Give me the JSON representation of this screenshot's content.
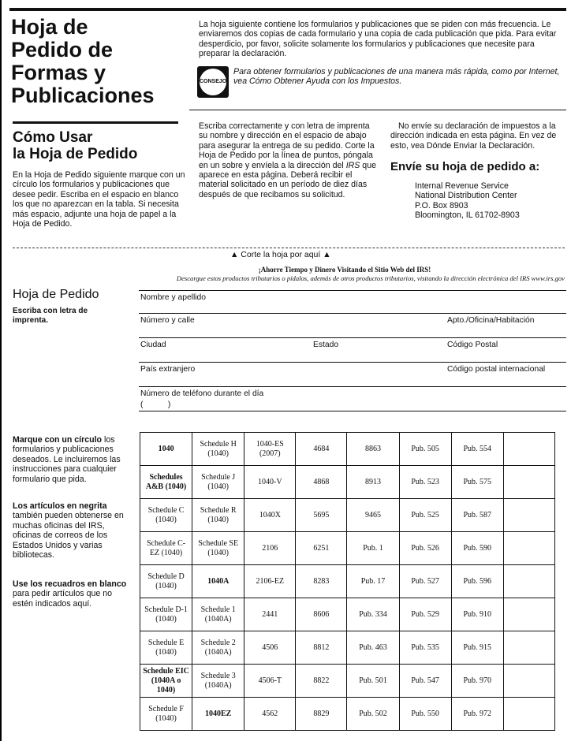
{
  "title": [
    "Hoja de",
    "Pedido de",
    "Formas y",
    "Publicaciones"
  ],
  "intro": "La hoja siguiente contiene los formularios y publicaciones que se piden con más frecuencia. Le enviaremos dos copias de cada formulario y una copia de cada publicación que pida. Para evitar desperdicio, por favor, solicite solamente los formularios y publicaciones que necesite para preparar la declaración.",
  "tip": {
    "badge": "CONSEJO",
    "text": "Para obtener formularios y publicaciones de una manera más rápida, como por Internet, vea Cómo Obtener Ayuda con los Impuestos."
  },
  "how": {
    "title1": "Cómo Usar",
    "title2": "la Hoja de Pedido",
    "text": "En la Hoja de Pedido siguiente marque con un círculo los formularios y publicaciones que desee pedir. Escriba en el espacio en blanco los que no aparezcan en la tabla. Si necesita más espacio, adjunte una hoja de papel a la Hoja de Pedido."
  },
  "middle": {
    "p1": "Escriba correctamente y con letra de imprenta su nombre y dirección en el espacio de abajo para asegurar la entrega de su pedido. Corte la Hoja de Pedido por la línea de puntos, póngala en un sobre y envíela a la dirección del ",
    "irs": "IRS",
    "p2": " que aparece en esta página. Deberá recibir el material solicitado en un período de diez días después de que recibamos su solicitud."
  },
  "right": {
    "text": "No envíe su declaración de impuestos a la dirección indicada en esta página. En vez de esto, vea Dónde Enviar la Declaración.",
    "heading": "Envíe su hoja de pedido a:",
    "address": [
      "Internal Revenue Service",
      "National Distribution Center",
      "P.O. Box 8903",
      "Bloomington, IL 61702-8903"
    ]
  },
  "cut": "▲ Corte la hoja por aquí ▲",
  "web": {
    "headline": "¡Ahorre Tiempo y Dinero Visitando el Sitio Web del IRS!",
    "text": "Descargue estos productos tributarios o pídalos, además de otros productos tributarios, visitando la dirección electrónica del IRS www.irs.gov"
  },
  "order": {
    "title": "Hoja de Pedido",
    "subtitle": "Escriba con letra de imprenta.",
    "fields": {
      "name": "Nombre y apellido",
      "street": "Número y calle",
      "apt": "Apto./Oficina/Habitación",
      "city": "Ciudad",
      "state": "Estado",
      "zip": "Código Postal",
      "country": "País extranjero",
      "intl_zip": "Código postal internacional",
      "phone": "Número de teléfono durante el día",
      "phone_paren": "(           )"
    }
  },
  "instructions": [
    {
      "bold": "Marque con un círculo",
      "rest": " los formularios y publicaciones deseados. Le incluiremos las instrucciones para cualquier formulario que pida."
    },
    {
      "bold": "Los artículos en negrita",
      "rest": " también pueden obtenerse en muchas oficinas del IRS, oficinas de correos de los Estados Unidos y varias bibliotecas."
    },
    {
      "bold": "Use los recuadros en blanco",
      "rest": " para pedir artículos que no estén indicados aquí."
    }
  ],
  "table": [
    [
      {
        "t": "1040",
        "b": true
      },
      {
        "t": "Schedule H (1040)"
      },
      {
        "t": "1040-ES (2007)"
      },
      {
        "t": "4684"
      },
      {
        "t": "8863"
      },
      {
        "t": "Pub. 505"
      },
      {
        "t": "Pub. 554"
      },
      {
        "t": ""
      }
    ],
    [
      {
        "t": "Schedules A&B (1040)",
        "b": true
      },
      {
        "t": "Schedule J (1040)"
      },
      {
        "t": "1040-V"
      },
      {
        "t": "4868"
      },
      {
        "t": "8913"
      },
      {
        "t": "Pub. 523"
      },
      {
        "t": "Pub. 575"
      },
      {
        "t": ""
      }
    ],
    [
      {
        "t": "Schedule C (1040)"
      },
      {
        "t": "Schedule R (1040)"
      },
      {
        "t": "1040X"
      },
      {
        "t": "5695"
      },
      {
        "t": "9465"
      },
      {
        "t": "Pub. 525"
      },
      {
        "t": "Pub. 587"
      },
      {
        "t": ""
      }
    ],
    [
      {
        "t": "Schedule C-EZ (1040)"
      },
      {
        "t": "Schedule SE (1040)"
      },
      {
        "t": "2106"
      },
      {
        "t": "6251"
      },
      {
        "t": "Pub. 1"
      },
      {
        "t": "Pub. 526"
      },
      {
        "t": "Pub. 590"
      },
      {
        "t": ""
      }
    ],
    [
      {
        "t": "Schedule D (1040)"
      },
      {
        "t": "1040A",
        "b": true
      },
      {
        "t": "2106-EZ"
      },
      {
        "t": "8283"
      },
      {
        "t": "Pub. 17"
      },
      {
        "t": "Pub. 527"
      },
      {
        "t": "Pub. 596"
      },
      {
        "t": ""
      }
    ],
    [
      {
        "t": "Schedule D-1 (1040)"
      },
      {
        "t": "Schedule 1 (1040A)"
      },
      {
        "t": "2441"
      },
      {
        "t": "8606"
      },
      {
        "t": "Pub. 334"
      },
      {
        "t": "Pub. 529"
      },
      {
        "t": "Pub. 910"
      },
      {
        "t": ""
      }
    ],
    [
      {
        "t": "Schedule E (1040)"
      },
      {
        "t": "Schedule 2 (1040A)"
      },
      {
        "t": "4506"
      },
      {
        "t": "8812"
      },
      {
        "t": "Pub. 463"
      },
      {
        "t": "Pub. 535"
      },
      {
        "t": "Pub. 915"
      },
      {
        "t": ""
      }
    ],
    [
      {
        "t": "Schedule EIC (1040A o 1040)",
        "b": true
      },
      {
        "t": "Schedule 3 (1040A)"
      },
      {
        "t": "4506-T"
      },
      {
        "t": "8822"
      },
      {
        "t": "Pub. 501"
      },
      {
        "t": "Pub. 547"
      },
      {
        "t": "Pub. 970"
      },
      {
        "t": ""
      }
    ],
    [
      {
        "t": "Schedule F (1040)"
      },
      {
        "t": "1040EZ",
        "b": true
      },
      {
        "t": "4562"
      },
      {
        "t": "8829"
      },
      {
        "t": "Pub. 502"
      },
      {
        "t": "Pub. 550"
      },
      {
        "t": "Pub. 972"
      },
      {
        "t": ""
      }
    ]
  ]
}
